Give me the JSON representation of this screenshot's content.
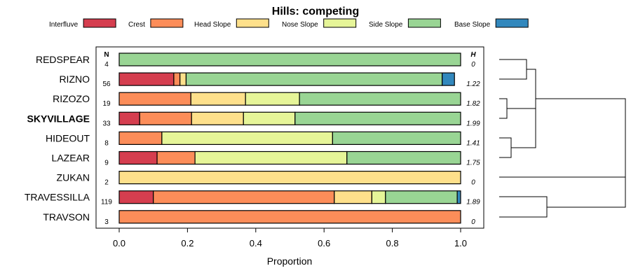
{
  "chart_data": {
    "type": "bar",
    "stacked": true,
    "orientation": "horizontal",
    "title": "Hills: competing",
    "xlabel": "Proportion",
    "xlim": [
      0,
      1
    ],
    "xticks": [
      "0.0",
      "0.2",
      "0.4",
      "0.6",
      "0.8",
      "1.0"
    ],
    "n_header": "N",
    "h_header": "H",
    "legend": [
      {
        "name": "Interfluve",
        "color": "#d53e4f"
      },
      {
        "name": "Crest",
        "color": "#fc8d59"
      },
      {
        "name": "Head Slope",
        "color": "#fee08b"
      },
      {
        "name": "Nose Slope",
        "color": "#e6f598"
      },
      {
        "name": "Side Slope",
        "color": "#99d594"
      },
      {
        "name": "Base Slope",
        "color": "#3288bd"
      }
    ],
    "rows": [
      {
        "name": "REDSPEAR",
        "bold": false,
        "n": "4",
        "h": "0",
        "values": [
          0,
          0,
          0,
          0,
          1.0,
          0
        ]
      },
      {
        "name": "RIZNO",
        "bold": false,
        "n": "56",
        "h": "1.22",
        "values": [
          0.16,
          0.018,
          0.018,
          0,
          0.75,
          0.036
        ]
      },
      {
        "name": "RIZOZO",
        "bold": false,
        "n": "19",
        "h": "1.82",
        "values": [
          0,
          0.21,
          0.16,
          0.158,
          0.472,
          0
        ]
      },
      {
        "name": "SKYVILLAGE",
        "bold": true,
        "n": "33",
        "h": "1.99",
        "values": [
          0.06,
          0.152,
          0.152,
          0.151,
          0.485,
          0
        ]
      },
      {
        "name": "HIDEOUT",
        "bold": false,
        "n": "8",
        "h": "1.41",
        "values": [
          0,
          0.125,
          0,
          0.5,
          0.375,
          0
        ]
      },
      {
        "name": "LAZEAR",
        "bold": false,
        "n": "9",
        "h": "1.75",
        "values": [
          0.111,
          0.111,
          0,
          0.445,
          0.333,
          0
        ]
      },
      {
        "name": "ZUKAN",
        "bold": false,
        "n": "2",
        "h": "0",
        "values": [
          0,
          0,
          1.0,
          0,
          0,
          0
        ]
      },
      {
        "name": "TRAVESSILLA",
        "bold": false,
        "n": "119",
        "h": "1.89",
        "values": [
          0.1,
          0.53,
          0.11,
          0.04,
          0.21,
          0.01
        ]
      },
      {
        "name": "TRAVSON",
        "bold": false,
        "n": "3",
        "h": "0",
        "values": [
          0,
          1.0,
          0,
          0,
          0,
          0
        ]
      }
    ],
    "dendrogram": {
      "description": "hierarchical clustering of rows",
      "merges": [
        {
          "a": "REDSPEAR",
          "b": "RIZNO",
          "height": 0.2
        },
        {
          "a": "RIZOZO",
          "b": "SKYVILLAGE",
          "height": 0.05
        },
        {
          "a": "HIDEOUT",
          "b": "LAZEAR",
          "height": 0.1
        },
        {
          "a": "cluster:RIZOZO+SKYVILLAGE",
          "b": "cluster:HIDEOUT+LAZEAR",
          "height": 0.3
        },
        {
          "a": "cluster:REDSPEAR+RIZNO",
          "b": "cluster:RIZOZO..LAZEAR",
          "height": 0.3
        },
        {
          "a": "TRAVESSILLA",
          "b": "TRAVSON",
          "height": 0.36
        },
        {
          "a": "cluster:REDSPEAR..LAZEAR",
          "b": "ZUKAN",
          "height": 1.0
        },
        {
          "a": "cluster:REDSPEAR..ZUKAN",
          "b": "cluster:TRAVESSILLA+TRAVSON",
          "height": 1.0
        }
      ]
    }
  }
}
